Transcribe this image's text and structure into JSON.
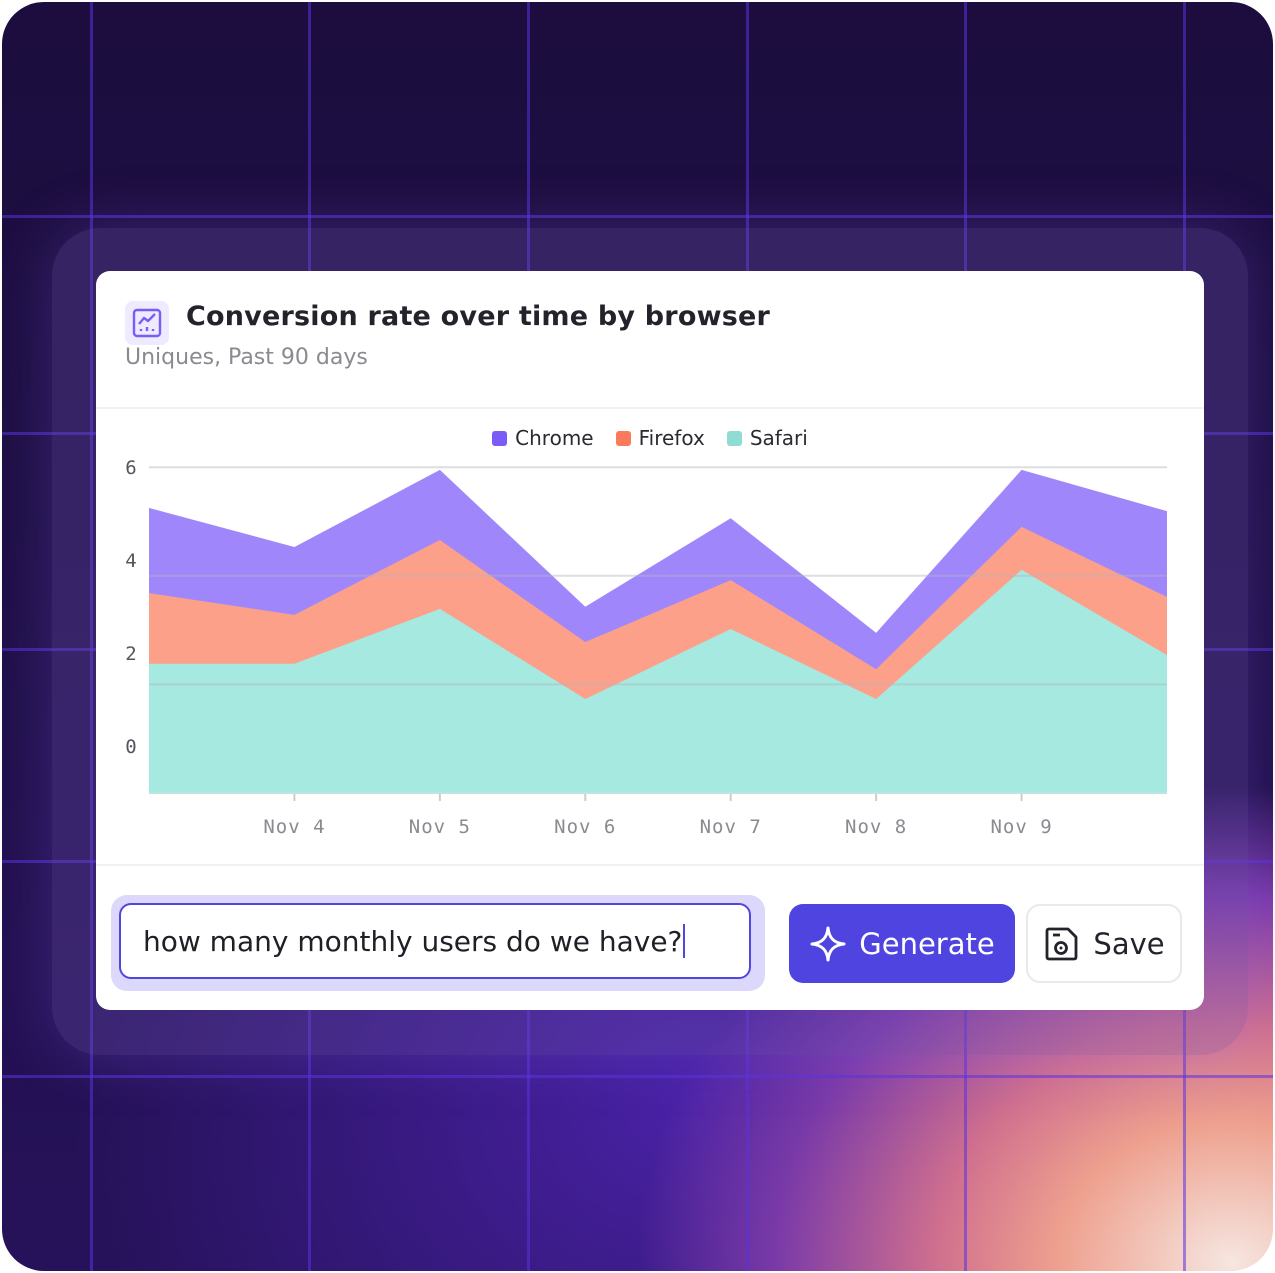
{
  "card": {
    "icon": "line-chart-icon",
    "title": "Conversion rate over time by browser",
    "subtitle": "Uniques, Past 90 days"
  },
  "prompt": {
    "value": "how many monthly users do we have?"
  },
  "buttons": {
    "generate_label": "Generate",
    "generate_icon": "sparkle-icon",
    "save_label": "Save",
    "save_icon": "save-disk-icon"
  },
  "colors": {
    "accent": "#4f44e0",
    "chrome": "#9f87fb",
    "firefox": "#fda08a",
    "safari": "#a5e9e1"
  },
  "chart_data": {
    "type": "area",
    "stacked": true,
    "x": [
      "",
      "Nov 4",
      "Nov 5",
      "Nov 6",
      "Nov 7",
      "Nov 8",
      "Nov 9",
      ""
    ],
    "y_ticks": [
      "0",
      "2",
      "4",
      "6"
    ],
    "ylim": [
      0,
      6
    ],
    "grid": true,
    "legend_position": "top-center",
    "series": [
      {
        "name": "Chrome",
        "color": "#9f87fb",
        "values": [
          1.57,
          1.25,
          1.29,
          0.65,
          1.14,
          0.67,
          1.05,
          1.58
        ]
      },
      {
        "name": "Firefox",
        "color": "#fda08a",
        "values": [
          1.3,
          0.9,
          1.27,
          1.05,
          0.9,
          0.55,
          0.79,
          1.07
        ]
      },
      {
        "name": "Safari",
        "color": "#a5e9e1",
        "values": [
          2.38,
          2.38,
          3.39,
          1.73,
          3.02,
          1.73,
          4.11,
          2.54
        ]
      }
    ]
  }
}
